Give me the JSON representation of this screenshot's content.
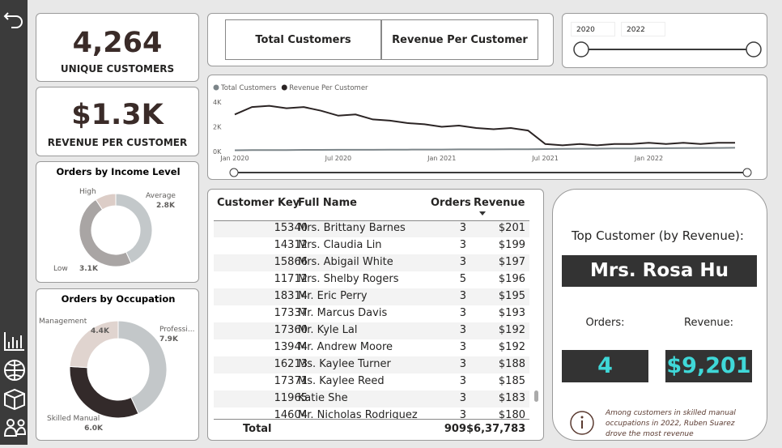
{
  "kpis": [
    {
      "value": "4,264",
      "label": "UNIQUE CUSTOMERS"
    },
    {
      "value": "$1.3K",
      "label": "REVENUE PER CUSTOMER"
    }
  ],
  "buttons": [
    "Total Customers",
    "Revenue Per Customer"
  ],
  "year_slicer": {
    "start": "2020",
    "end": "2022"
  },
  "chart_data": [
    {
      "type": "line",
      "legend": "top-left",
      "grid": false,
      "x": [
        "2020-01",
        "2020-02",
        "2020-03",
        "2020-04",
        "2020-05",
        "2020-06",
        "2020-07",
        "2020-08",
        "2020-09",
        "2020-10",
        "2020-11",
        "2020-12",
        "2021-01",
        "2021-02",
        "2021-03",
        "2021-04",
        "2021-05",
        "2021-06",
        "2021-07",
        "2021-08",
        "2021-09",
        "2021-10",
        "2021-11",
        "2021-12",
        "2022-01",
        "2022-02",
        "2022-03",
        "2022-04",
        "2022-05",
        "2022-06"
      ],
      "xlim": [
        "2020-01",
        "2022-06"
      ],
      "xticks": [
        {
          "value": "2020-01",
          "label": "Jan 2020"
        },
        {
          "value": "2020-07",
          "label": "Jul 2020"
        },
        {
          "value": "2021-01",
          "label": "Jan 2021"
        },
        {
          "value": "2021-07",
          "label": "Jul 2021"
        },
        {
          "value": "2022-01",
          "label": "Jan 2022"
        }
      ],
      "ylim": [
        0,
        4000
      ],
      "yticks": [
        {
          "value": 0,
          "label": "0K"
        },
        {
          "value": 2000,
          "label": "2K"
        },
        {
          "value": 4000,
          "label": "4K"
        }
      ],
      "series": [
        {
          "name": "Total Customers",
          "color": "#7c8589",
          "values": [
            100,
            110,
            120,
            120,
            130,
            130,
            140,
            140,
            140,
            150,
            150,
            160,
            160,
            170,
            170,
            170,
            180,
            180,
            200,
            210,
            220,
            230,
            240,
            250,
            260,
            270,
            280,
            290,
            290,
            300
          ]
        },
        {
          "name": "Revenue Per Customer",
          "color": "#2b2424",
          "values": [
            3000,
            3600,
            3700,
            3500,
            3600,
            3300,
            2900,
            3000,
            2600,
            2500,
            2300,
            2200,
            2000,
            2100,
            1900,
            1800,
            1900,
            1700,
            600,
            500,
            600,
            500,
            600,
            600,
            700,
            600,
            700,
            600,
            700,
            700
          ]
        }
      ]
    },
    {
      "type": "donut",
      "title": "Orders by Income Level",
      "categories": [
        "Average",
        "Low",
        "High"
      ],
      "values": [
        2800,
        3100,
        600
      ],
      "value_labels": [
        "2.8K",
        "3.1K",
        null
      ],
      "colors": [
        "#c3c8ca",
        "#a9a5a4",
        "#dccdc7"
      ]
    },
    {
      "type": "donut",
      "title": "Orders by Occupation",
      "categories": [
        "Professi...",
        "Skilled Manual",
        "Management"
      ],
      "values": [
        7900,
        6000,
        4400
      ],
      "value_labels": [
        "7.9K",
        "6.0K",
        "4.4K"
      ],
      "colors": [
        "#c3c7c9",
        "#332a2a",
        "#e0d4cf"
      ]
    }
  ],
  "table": {
    "columns": [
      "Customer Key",
      "Full Name",
      "Orders",
      "Revenue"
    ],
    "rows": [
      [
        15340,
        "Mrs. Brittany Barnes",
        3,
        "$201"
      ],
      [
        14312,
        "Mrs. Claudia Lin",
        3,
        "$199"
      ],
      [
        15866,
        "Mrs. Abigail White",
        3,
        "$197"
      ],
      [
        11712,
        "Mrs. Shelby Rogers",
        5,
        "$196"
      ],
      [
        18314,
        "Mr. Eric Perry",
        3,
        "$195"
      ],
      [
        17337,
        "Mr. Marcus Davis",
        3,
        "$193"
      ],
      [
        17360,
        "Mr. Kyle Lal",
        3,
        "$192"
      ],
      [
        13944,
        "Mr. Andrew Moore",
        3,
        "$192"
      ],
      [
        16213,
        "Ms. Kaylee Turner",
        3,
        "$188"
      ],
      [
        17371,
        "Ms. Kaylee Reed",
        3,
        "$185"
      ],
      [
        11965,
        "Katie She",
        3,
        "$183"
      ],
      [
        14604,
        "Mr. Nicholas Rodriguez",
        3,
        "$180"
      ]
    ],
    "total": [
      "Total",
      909,
      "$6,37,783"
    ]
  },
  "top_customer": {
    "title": "Top Customer (by Revenue):",
    "name": "Mrs. Rosa Hu",
    "orders_label": "Orders:",
    "revenue_label": "Revenue:",
    "orders": 4,
    "revenue": "$9,201",
    "note": "Among customers in skilled manual occupations in 2022, Ruben Suarez drove the most revenue"
  }
}
